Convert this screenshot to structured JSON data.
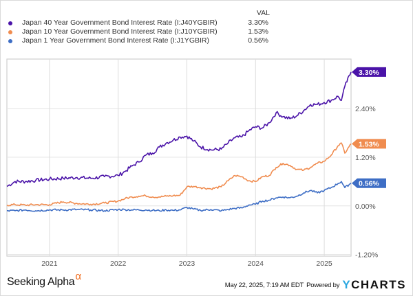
{
  "legend": {
    "value_header": "VAL",
    "items": [
      {
        "name": "Japan 40 Year Government Bond Interest Rate (I:J40YGBIR)",
        "value": "3.30%",
        "color": "#4a13a8"
      },
      {
        "name": "Japan 10 Year Government Bond Interest Rate (I:J10YGBIR)",
        "value": "1.53%",
        "color": "#f08c4f"
      },
      {
        "name": "Japan 1 Year Government Bond Interest Rate (I:J1YGBIR)",
        "value": "0.56%",
        "color": "#3e6ec5"
      }
    ]
  },
  "footer": {
    "brand_left": "Seeking Alpha",
    "brand_left_symbol": "α",
    "timestamp": "May 22, 2025, 7:19 AM EDT",
    "powered_by": "Powered by",
    "brand_right_y": "Y",
    "brand_right_rest": "CHARTS"
  },
  "chart_data": {
    "type": "line",
    "title": "",
    "xlabel": "",
    "ylabel": "",
    "x_ticks": [
      2021,
      2022,
      2023,
      2024,
      2025
    ],
    "x_tick_labels": [
      "2021",
      "2022",
      "2023",
      "2024",
      "2025"
    ],
    "xlim": [
      2020.38,
      2025.39
    ],
    "y_ticks": [
      2.4,
      1.2,
      0.0,
      -1.2
    ],
    "y_tick_labels": [
      "2.40%",
      "1.20%",
      "0.00%",
      "-1.20%"
    ],
    "ylim": [
      -1.24,
      3.62
    ],
    "grid": true,
    "legend_position": "top",
    "end_labels": [
      "3.30%",
      "1.53%",
      "0.56%"
    ],
    "x": [
      2020.38,
      2020.5,
      2020.65,
      2020.8,
      2021.0,
      2021.2,
      2021.4,
      2021.6,
      2021.8,
      2022.0,
      2022.1,
      2022.2,
      2022.3,
      2022.4,
      2022.5,
      2022.6,
      2022.7,
      2022.8,
      2022.9,
      2023.0,
      2023.1,
      2023.2,
      2023.35,
      2023.5,
      2023.6,
      2023.7,
      2023.8,
      2023.9,
      2024.0,
      2024.1,
      2024.2,
      2024.3,
      2024.4,
      2024.5,
      2024.6,
      2024.7,
      2024.8,
      2024.9,
      2025.0,
      2025.1,
      2025.2,
      2025.25,
      2025.3,
      2025.39
    ],
    "series": [
      {
        "name": "Japan 40 Year Government Bond Interest Rate (I:J40YGBIR)",
        "color": "#4a13a8",
        "values": [
          0.48,
          0.6,
          0.6,
          0.63,
          0.66,
          0.68,
          0.7,
          0.68,
          0.72,
          0.75,
          0.85,
          0.98,
          1.08,
          1.25,
          1.3,
          1.45,
          1.55,
          1.62,
          1.7,
          1.72,
          1.6,
          1.45,
          1.38,
          1.4,
          1.55,
          1.68,
          1.7,
          1.85,
          1.95,
          1.92,
          2.05,
          2.3,
          2.2,
          2.15,
          2.22,
          2.35,
          2.5,
          2.5,
          2.55,
          2.6,
          2.7,
          2.6,
          2.95,
          3.3
        ]
      },
      {
        "name": "Japan 10 Year Government Bond Interest Rate (I:J10YGBIR)",
        "color": "#f08c4f",
        "values": [
          0.02,
          0.03,
          0.02,
          0.03,
          0.03,
          0.1,
          0.06,
          0.04,
          0.07,
          0.12,
          0.18,
          0.22,
          0.24,
          0.25,
          0.22,
          0.22,
          0.24,
          0.25,
          0.26,
          0.47,
          0.48,
          0.45,
          0.42,
          0.47,
          0.62,
          0.75,
          0.72,
          0.62,
          0.6,
          0.72,
          0.75,
          0.95,
          1.05,
          1.0,
          0.9,
          0.88,
          0.95,
          1.05,
          1.1,
          1.25,
          1.48,
          1.55,
          1.3,
          1.53
        ]
      },
      {
        "name": "Japan 1 Year Government Bond Interest Rate (I:J1YGBIR)",
        "color": "#3e6ec5",
        "values": [
          -0.12,
          -0.12,
          -0.1,
          -0.12,
          -0.1,
          -0.1,
          -0.09,
          -0.1,
          -0.12,
          -0.09,
          -0.09,
          -0.1,
          -0.1,
          -0.1,
          -0.11,
          -0.12,
          -0.1,
          -0.11,
          -0.1,
          -0.04,
          -0.08,
          -0.11,
          -0.09,
          -0.12,
          -0.09,
          -0.06,
          -0.05,
          0.02,
          0.04,
          0.12,
          0.14,
          0.2,
          0.22,
          0.2,
          0.24,
          0.32,
          0.38,
          0.32,
          0.38,
          0.45,
          0.55,
          0.6,
          0.45,
          0.56
        ]
      }
    ]
  }
}
